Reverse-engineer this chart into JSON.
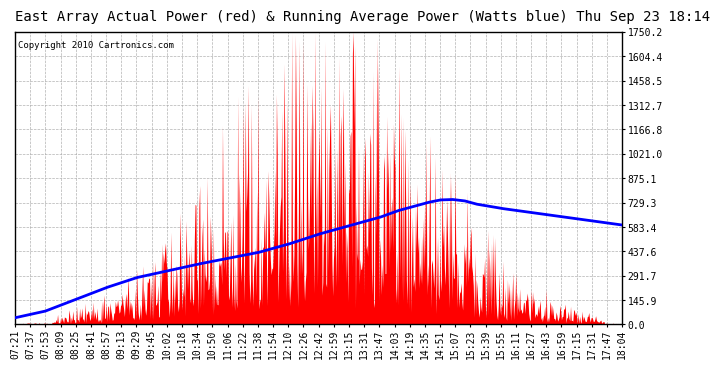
{
  "title": "East Array Actual Power (red) & Running Average Power (Watts blue) Thu Sep 23 18:14",
  "copyright": "Copyright 2010 Cartronics.com",
  "yticks": [
    0.0,
    145.9,
    291.7,
    437.6,
    583.4,
    729.3,
    875.1,
    1021.0,
    1166.8,
    1312.7,
    1458.5,
    1604.4,
    1750.2
  ],
  "ymax": 1750.2,
  "ymin": 0.0,
  "xtick_labels": [
    "07:21",
    "07:37",
    "07:53",
    "08:09",
    "08:25",
    "08:41",
    "08:57",
    "09:13",
    "09:29",
    "09:45",
    "10:02",
    "10:18",
    "10:34",
    "10:50",
    "11:06",
    "11:22",
    "11:38",
    "11:54",
    "12:10",
    "12:26",
    "12:42",
    "12:59",
    "13:15",
    "13:31",
    "13:47",
    "14:03",
    "14:19",
    "14:35",
    "14:51",
    "15:07",
    "15:23",
    "15:39",
    "15:55",
    "16:11",
    "16:27",
    "16:43",
    "16:59",
    "17:15",
    "17:31",
    "17:47",
    "18:04"
  ],
  "background_color": "#ffffff",
  "plot_bg_color": "#ffffff",
  "grid_color": "#aaaaaa",
  "red_color": "#ff0000",
  "blue_color": "#0000ff",
  "title_fontsize": 10,
  "tick_fontsize": 7,
  "copyright_fontsize": 6.5,
  "blue_avg_points": [
    [
      0.0,
      40
    ],
    [
      0.05,
      80
    ],
    [
      0.1,
      150
    ],
    [
      0.15,
      220
    ],
    [
      0.2,
      280
    ],
    [
      0.25,
      320
    ],
    [
      0.3,
      360
    ],
    [
      0.35,
      395
    ],
    [
      0.4,
      430
    ],
    [
      0.45,
      480
    ],
    [
      0.5,
      540
    ],
    [
      0.55,
      590
    ],
    [
      0.6,
      640
    ],
    [
      0.63,
      680
    ],
    [
      0.66,
      710
    ],
    [
      0.68,
      730
    ],
    [
      0.7,
      745
    ],
    [
      0.72,
      748
    ],
    [
      0.74,
      740
    ],
    [
      0.76,
      720
    ],
    [
      0.8,
      695
    ],
    [
      0.85,
      670
    ],
    [
      0.9,
      645
    ],
    [
      0.95,
      620
    ],
    [
      1.0,
      595
    ]
  ]
}
